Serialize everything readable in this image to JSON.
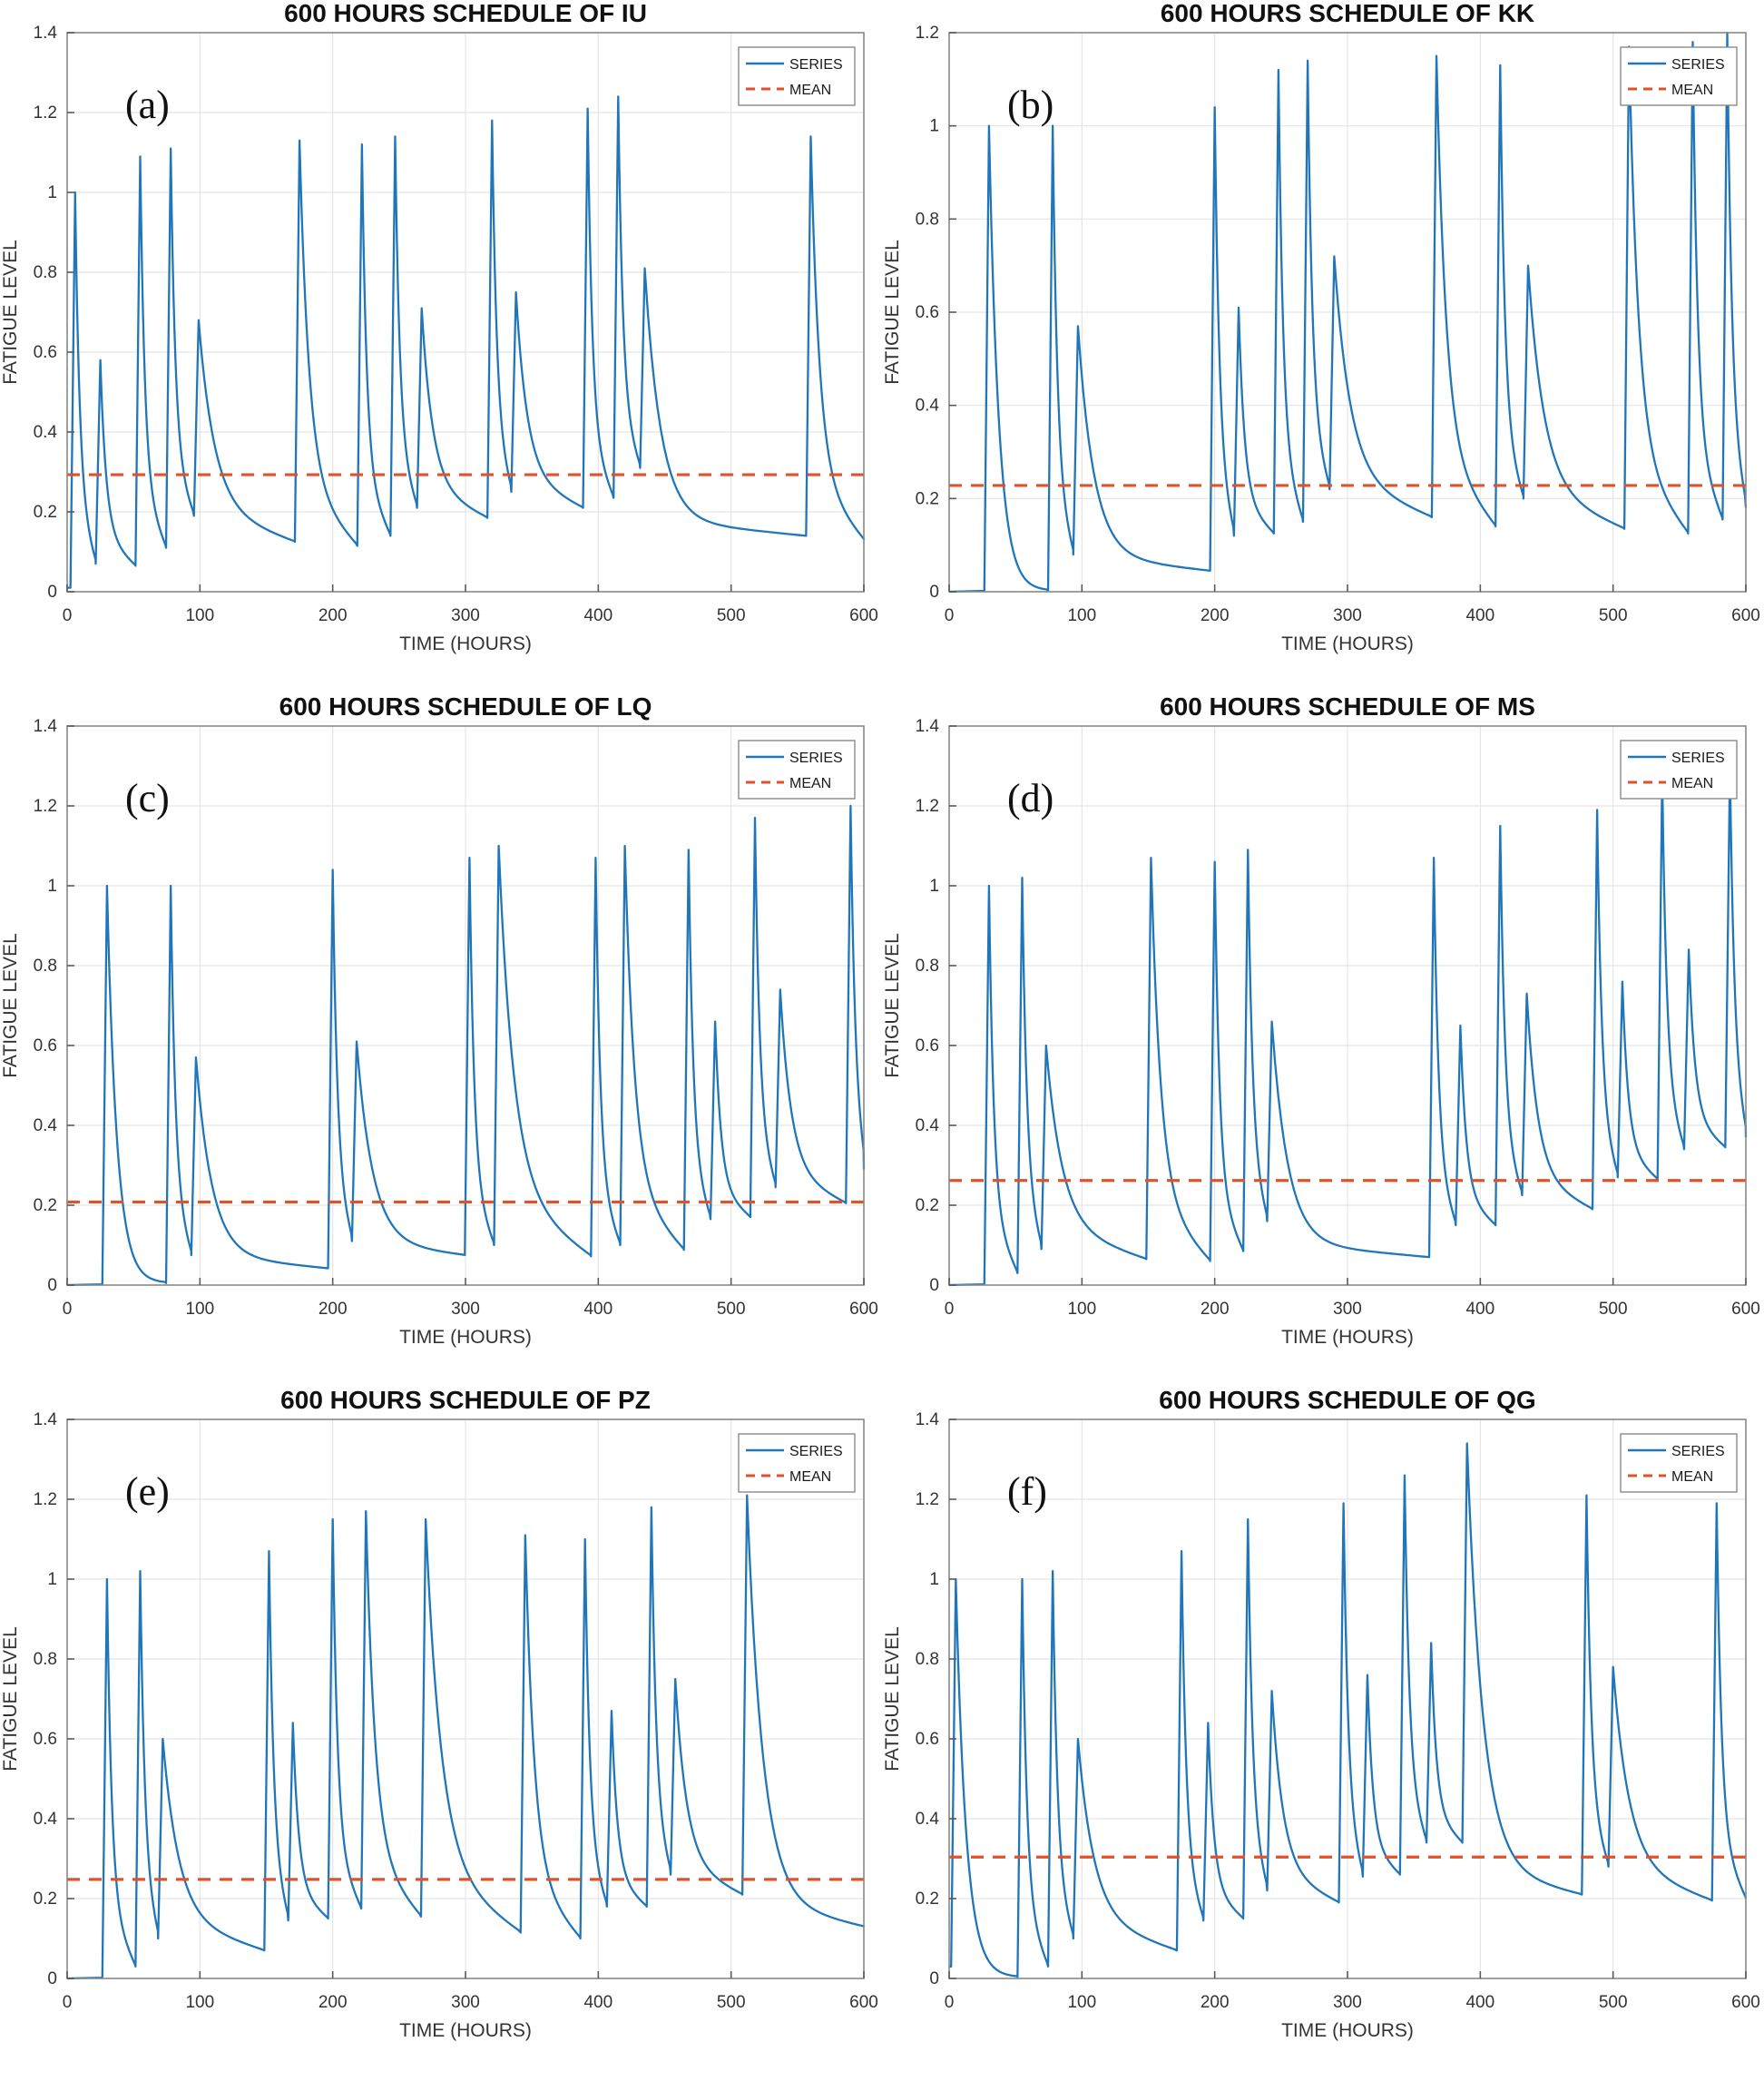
{
  "page": {
    "background": "#FFFFFF"
  },
  "styles": {
    "series_color": "#2076B8",
    "mean_color": "#E0522B",
    "grid_color": "#E5E5E5",
    "axis_color": "#8A8A8A",
    "tick_color": "#5A5A5A",
    "tick_text_color": "#333333",
    "title_color": "#111111",
    "letter_color": "#111111",
    "legend_border_color": "#8A8A8A",
    "legend_text_color": "#1A1A1A"
  },
  "chart_data": [
    {
      "type": "line",
      "panel_id": "a",
      "panel_label": "(a)",
      "title": "600 HOURS SCHEDULE OF IU",
      "xlabel": "TIME (HOURS)",
      "ylabel": "FATIGUE LEVEL",
      "xlim": [
        0,
        600
      ],
      "ylim": [
        0,
        1.4
      ],
      "xticks": [
        0,
        100,
        200,
        300,
        400,
        500,
        600
      ],
      "yticks": [
        0,
        0.2,
        0.4,
        0.6,
        0.8,
        1,
        1.2,
        1.4
      ],
      "grid": true,
      "legend": [
        "SERIES",
        "MEAN"
      ],
      "legend_position": "top-right",
      "mean": 0.293,
      "series_start": 0.01,
      "series_end": 0.13,
      "spikes_t_peak_valley": [
        [
          6,
          1.0,
          0.01
        ],
        [
          25,
          0.58,
          0.07
        ],
        [
          55,
          1.09,
          0.065
        ],
        [
          78,
          1.11,
          0.11
        ],
        [
          99,
          0.68,
          0.19
        ],
        [
          175,
          1.13,
          0.125
        ],
        [
          222,
          1.12,
          0.115
        ],
        [
          247,
          1.14,
          0.14
        ],
        [
          267,
          0.71,
          0.21
        ],
        [
          320,
          1.18,
          0.185
        ],
        [
          338,
          0.75,
          0.25
        ],
        [
          392,
          1.21,
          0.21
        ],
        [
          415,
          1.24,
          0.235
        ],
        [
          435,
          0.81,
          0.31
        ],
        [
          560,
          1.14,
          0.14
        ]
      ]
    },
    {
      "type": "line",
      "panel_id": "b",
      "panel_label": "(b)",
      "title": "600 HOURS SCHEDULE OF KK",
      "xlabel": "TIME (HOURS)",
      "ylabel": "FATIGUE LEVEL",
      "xlim": [
        0,
        600
      ],
      "ylim": [
        0,
        1.2
      ],
      "xticks": [
        0,
        100,
        200,
        300,
        400,
        500,
        600
      ],
      "yticks": [
        0,
        0.2,
        0.4,
        0.6,
        0.8,
        1,
        1.2
      ],
      "grid": true,
      "legend": [
        "SERIES",
        "MEAN"
      ],
      "legend_position": "top-right",
      "mean": 0.228,
      "series_start": 0.0,
      "series_end": 0.18,
      "spikes_t_peak_valley": [
        [
          30,
          1.0,
          0.002
        ],
        [
          78,
          1.0,
          0.002
        ],
        [
          97,
          0.57,
          0.08
        ],
        [
          200,
          1.04,
          0.045
        ],
        [
          218,
          0.61,
          0.12
        ],
        [
          248,
          1.12,
          0.125
        ],
        [
          270,
          1.14,
          0.15
        ],
        [
          290,
          0.72,
          0.22
        ],
        [
          367,
          1.15,
          0.16
        ],
        [
          415,
          1.13,
          0.14
        ],
        [
          436,
          0.7,
          0.2
        ],
        [
          512,
          1.17,
          0.135
        ],
        [
          560,
          1.18,
          0.125
        ],
        [
          586,
          1.2,
          0.155
        ]
      ]
    },
    {
      "type": "line",
      "panel_id": "c",
      "panel_label": "(c)",
      "title": "600 HOURS SCHEDULE OF LQ",
      "xlabel": "TIME (HOURS)",
      "ylabel": "FATIGUE LEVEL",
      "xlim": [
        0,
        600
      ],
      "ylim": [
        0,
        1.4
      ],
      "xticks": [
        0,
        100,
        200,
        300,
        400,
        500,
        600
      ],
      "yticks": [
        0,
        0.2,
        0.4,
        0.6,
        0.8,
        1,
        1.2,
        1.4
      ],
      "grid": true,
      "legend": [
        "SERIES",
        "MEAN"
      ],
      "legend_position": "top-right",
      "mean": 0.208,
      "series_start": 0.0,
      "series_end": 0.29,
      "spikes_t_peak_valley": [
        [
          30,
          1.0,
          0.002
        ],
        [
          78,
          1.0,
          0.005
        ],
        [
          97,
          0.57,
          0.075
        ],
        [
          200,
          1.04,
          0.042
        ],
        [
          218,
          0.61,
          0.11
        ],
        [
          303,
          1.07,
          0.075
        ],
        [
          325,
          1.1,
          0.1
        ],
        [
          398,
          1.07,
          0.072
        ],
        [
          420,
          1.1,
          0.1
        ],
        [
          468,
          1.09,
          0.088
        ],
        [
          488,
          0.66,
          0.165
        ],
        [
          518,
          1.17,
          0.17
        ],
        [
          537,
          0.74,
          0.245
        ],
        [
          590,
          1.2,
          0.205
        ]
      ]
    },
    {
      "type": "line",
      "panel_id": "d",
      "panel_label": "(d)",
      "title": "600 HOURS SCHEDULE OF MS",
      "xlabel": "TIME (HOURS)",
      "ylabel": "FATIGUE LEVEL",
      "xlim": [
        0,
        600
      ],
      "ylim": [
        0,
        1.4
      ],
      "xticks": [
        0,
        100,
        200,
        300,
        400,
        500,
        600
      ],
      "yticks": [
        0,
        0.2,
        0.4,
        0.6,
        0.8,
        1,
        1.2,
        1.4
      ],
      "grid": true,
      "legend": [
        "SERIES",
        "MEAN"
      ],
      "legend_position": "top-right",
      "mean": 0.262,
      "series_start": 0.0,
      "series_end": 0.37,
      "spikes_t_peak_valley": [
        [
          30,
          1.0,
          0.002
        ],
        [
          55,
          1.02,
          0.03
        ],
        [
          73,
          0.6,
          0.09
        ],
        [
          152,
          1.07,
          0.065
        ],
        [
          200,
          1.06,
          0.06
        ],
        [
          225,
          1.09,
          0.085
        ],
        [
          243,
          0.66,
          0.16
        ],
        [
          365,
          1.07,
          0.07
        ],
        [
          385,
          0.65,
          0.15
        ],
        [
          415,
          1.15,
          0.15
        ],
        [
          435,
          0.73,
          0.225
        ],
        [
          488,
          1.19,
          0.19
        ],
        [
          507,
          0.76,
          0.27
        ],
        [
          537,
          1.28,
          0.265
        ],
        [
          557,
          0.84,
          0.34
        ],
        [
          588,
          1.3,
          0.345
        ]
      ]
    },
    {
      "type": "line",
      "panel_id": "e",
      "panel_label": "(e)",
      "title": "600 HOURS SCHEDULE OF PZ",
      "xlabel": "TIME (HOURS)",
      "ylabel": "FATIGUE LEVEL",
      "xlim": [
        0,
        600
      ],
      "ylim": [
        0,
        1.4
      ],
      "xticks": [
        0,
        100,
        200,
        300,
        400,
        500,
        600
      ],
      "yticks": [
        0,
        0.2,
        0.4,
        0.6,
        0.8,
        1,
        1.2,
        1.4
      ],
      "grid": true,
      "legend": [
        "SERIES",
        "MEAN"
      ],
      "legend_position": "top-right",
      "mean": 0.248,
      "series_start": 0.0,
      "series_end": 0.13,
      "spikes_t_peak_valley": [
        [
          30,
          1.0,
          0.002
        ],
        [
          55,
          1.02,
          0.03
        ],
        [
          72,
          0.6,
          0.1
        ],
        [
          152,
          1.07,
          0.07
        ],
        [
          170,
          0.64,
          0.145
        ],
        [
          200,
          1.15,
          0.15
        ],
        [
          225,
          1.17,
          0.175
        ],
        [
          270,
          1.15,
          0.155
        ],
        [
          345,
          1.11,
          0.115
        ],
        [
          390,
          1.1,
          0.1
        ],
        [
          410,
          0.67,
          0.18
        ],
        [
          440,
          1.18,
          0.18
        ],
        [
          458,
          0.75,
          0.26
        ],
        [
          512,
          1.21,
          0.21
        ]
      ]
    },
    {
      "type": "line",
      "panel_id": "f",
      "panel_label": "(f)",
      "title": "600 HOURS SCHEDULE OF QG",
      "xlabel": "TIME (HOURS)",
      "ylabel": "FATIGUE LEVEL",
      "xlim": [
        0,
        600
      ],
      "ylim": [
        0,
        1.4
      ],
      "xticks": [
        0,
        100,
        200,
        300,
        400,
        500,
        600
      ],
      "yticks": [
        0,
        0.2,
        0.4,
        0.6,
        0.8,
        1,
        1.2,
        1.4
      ],
      "grid": true,
      "legend": [
        "SERIES",
        "MEAN"
      ],
      "legend_position": "top-right",
      "mean": 0.304,
      "series_start": 0.03,
      "series_end": 0.2,
      "spikes_t_peak_valley": [
        [
          5,
          1.0,
          0.03
        ],
        [
          55,
          1.0,
          0.003
        ],
        [
          78,
          1.02,
          0.03
        ],
        [
          97,
          0.6,
          0.1
        ],
        [
          175,
          1.07,
          0.07
        ],
        [
          195,
          0.64,
          0.145
        ],
        [
          225,
          1.15,
          0.15
        ],
        [
          243,
          0.72,
          0.22
        ],
        [
          297,
          1.19,
          0.19
        ],
        [
          315,
          0.76,
          0.255
        ],
        [
          343,
          1.26,
          0.26
        ],
        [
          363,
          0.84,
          0.34
        ],
        [
          390,
          1.34,
          0.34
        ],
        [
          480,
          1.21,
          0.21
        ],
        [
          500,
          0.78,
          0.28
        ],
        [
          578,
          1.19,
          0.195
        ]
      ]
    }
  ]
}
